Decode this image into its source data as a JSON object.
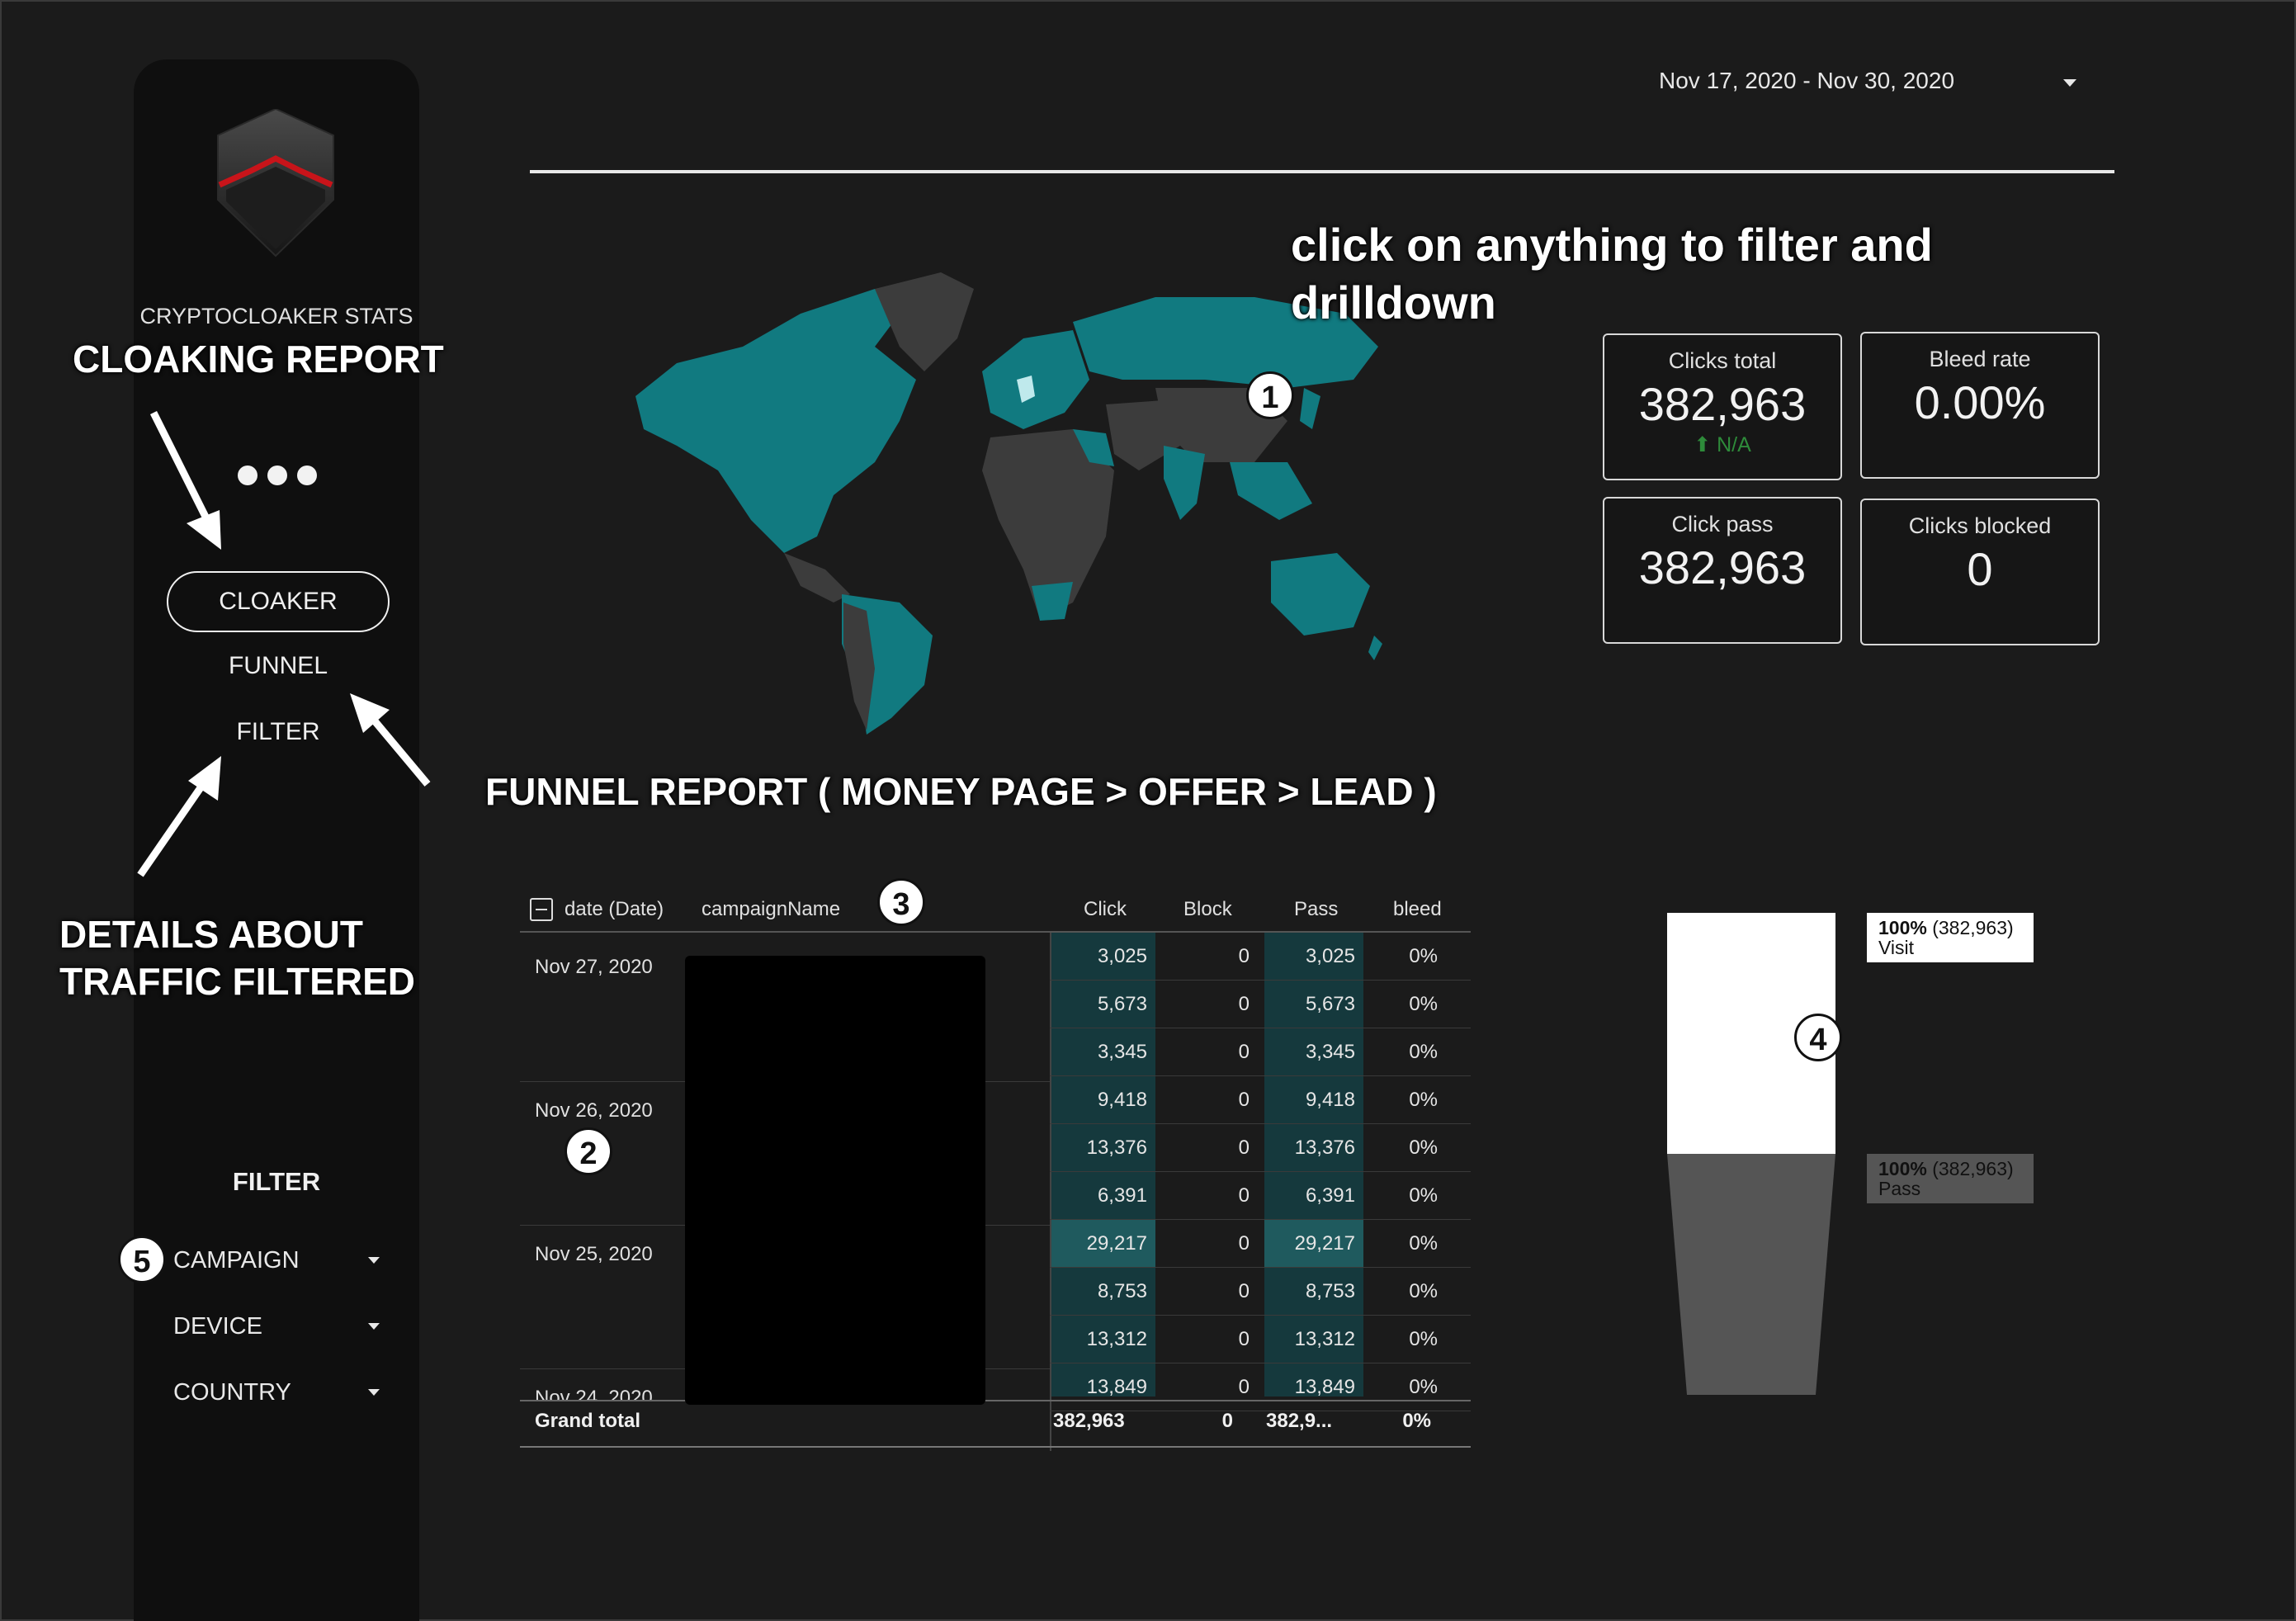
{
  "brand": {
    "name": "CRYPTOCLOAKER STATS"
  },
  "nav": [
    {
      "label": "CLOAKER",
      "active": true
    },
    {
      "label": "FUNNEL",
      "active": false
    },
    {
      "label": "FILTER",
      "active": false
    }
  ],
  "filters": {
    "title": "FILTER",
    "items": [
      {
        "label": "CAMPAIGN"
      },
      {
        "label": "DEVICE"
      },
      {
        "label": "COUNTRY"
      }
    ]
  },
  "header": {
    "date_range": "Nov 17, 2020 - Nov 30, 2020"
  },
  "annotations": {
    "cloaking_report": "CLOAKING REPORT",
    "details": "DETAILS ABOUT\nTRAFFIC FILTERED",
    "funnel_report": "FUNNEL REPORT ( MONEY PAGE > OFFER > LEAD )",
    "click_hint": "click on anything to filter and drilldown",
    "badges": [
      "1",
      "2",
      "3",
      "4",
      "5"
    ]
  },
  "kpis": [
    {
      "label": "Clicks total",
      "value": "382,963",
      "delta": "⬆ N/A"
    },
    {
      "label": "Bleed rate",
      "value": "0.00%",
      "delta": ""
    },
    {
      "label": "Click pass",
      "value": "382,963",
      "delta": ""
    },
    {
      "label": "Clicks blocked",
      "value": "0",
      "delta": ""
    }
  ],
  "table": {
    "columns": [
      "date (Date)",
      "campaignName",
      "Click",
      "Block",
      "Pass",
      "bleed"
    ],
    "dates": [
      "Nov 27, 2020",
      "Nov 26, 2020",
      "Nov 25, 2020",
      "Nov 24, 2020"
    ],
    "rows": [
      {
        "click": "3,025",
        "block": "0",
        "pass": "3,025",
        "bleed": "0%"
      },
      {
        "click": "5,673",
        "block": "0",
        "pass": "5,673",
        "bleed": "0%"
      },
      {
        "click": "3,345",
        "block": "0",
        "pass": "3,345",
        "bleed": "0%"
      },
      {
        "click": "9,418",
        "block": "0",
        "pass": "9,418",
        "bleed": "0%"
      },
      {
        "click": "13,376",
        "block": "0",
        "pass": "13,376",
        "bleed": "0%"
      },
      {
        "click": "6,391",
        "block": "0",
        "pass": "6,391",
        "bleed": "0%"
      },
      {
        "click": "29,217",
        "block": "0",
        "pass": "29,217",
        "bleed": "0%"
      },
      {
        "click": "8,753",
        "block": "0",
        "pass": "8,753",
        "bleed": "0%"
      },
      {
        "click": "13,312",
        "block": "0",
        "pass": "13,312",
        "bleed": "0%"
      },
      {
        "click": "13,849",
        "block": "0",
        "pass": "13,849",
        "bleed": "0%"
      }
    ],
    "grand_total": {
      "label": "Grand total",
      "click": "382,963",
      "block": "0",
      "pass": "382,9...",
      "bleed": "0%"
    }
  },
  "funnel": [
    {
      "pct": "100%",
      "count": "(382,963)",
      "stage": "Visit"
    },
    {
      "pct": "100%",
      "count": "(382,963)",
      "stage": "Pass"
    }
  ],
  "colors": {
    "map_highlight": "#117a80",
    "map_land": "#3c3c3c",
    "map_selected": "#bfe9ec",
    "table_highlight": "#15393d"
  }
}
